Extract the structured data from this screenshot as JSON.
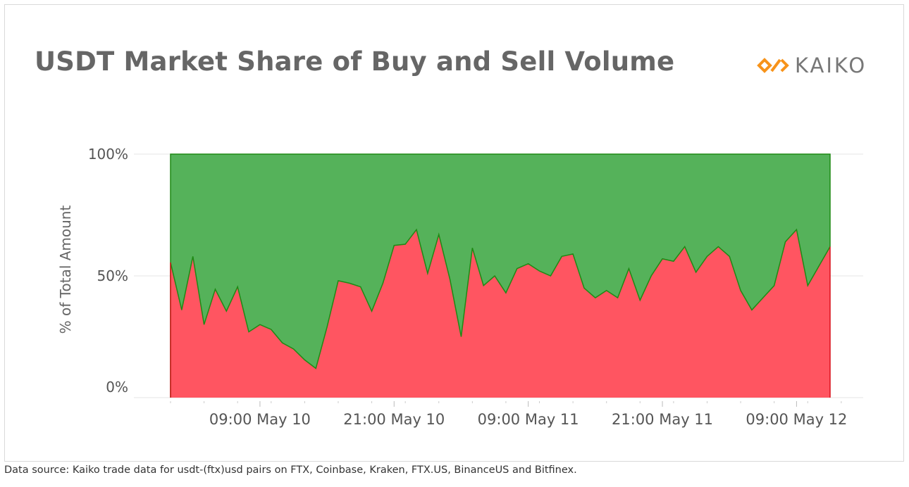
{
  "title": "USDT Market Share of Buy and Sell Volume",
  "logo": {
    "text": "KAIKO",
    "icon": "kaiko-logo-icon",
    "color": "#f7931a"
  },
  "footer": "Data source: Kaiko trade data for usdt-(ftx)usd pairs on FTX, Coinbase, Kraken, FTX.US, BinanceUS and Bitfinex.",
  "chart_data": {
    "type": "area",
    "stacked": true,
    "ylabel": "% of Total Amount",
    "ylim": [
      0,
      100
    ],
    "yticks": [
      "100%",
      "50%",
      "0%"
    ],
    "xtick_labels": [
      "09:00 May 10",
      "21:00 May 10",
      "09:00 May 11",
      "21:00 May 11",
      "09:00 May 12"
    ],
    "grid": true,
    "colors": {
      "red_series": "#ff5561",
      "red_line": "#d8101a",
      "green_series": "#55b25a",
      "green_line": "#1e8a14"
    },
    "x_hours": [
      0,
      1,
      2,
      3,
      4,
      5,
      6,
      7,
      8,
      9,
      10,
      11,
      12,
      13,
      14,
      15,
      16,
      17,
      18,
      19,
      20,
      21,
      22,
      23,
      24,
      25,
      26,
      27,
      28,
      29,
      30,
      31,
      32,
      33,
      34,
      35,
      36,
      37,
      38,
      39,
      40,
      41,
      42,
      43,
      44,
      45,
      46,
      47,
      48,
      49,
      50,
      51,
      52,
      53,
      54,
      55,
      56,
      57,
      58,
      59
    ],
    "red_series_values": [
      55.5,
      36,
      58,
      30,
      44.5,
      35.5,
      45.5,
      27,
      30,
      28,
      22.5,
      20,
      15.5,
      12,
      29,
      48,
      47,
      45.5,
      35.5,
      47,
      62.5,
      63,
      69,
      51,
      67,
      48.5,
      25,
      61.5,
      46,
      50,
      43,
      53,
      55,
      52,
      50,
      58,
      59,
      45,
      41,
      44,
      41,
      53,
      40,
      50,
      57,
      56,
      62,
      51.5,
      58,
      62,
      58,
      44,
      36,
      41,
      46,
      64,
      69,
      46,
      54,
      62
    ],
    "green_series_values": [
      44.5,
      64,
      42,
      70,
      55.5,
      64.5,
      54.5,
      73,
      70,
      72,
      77.5,
      80,
      84.5,
      88,
      71,
      52,
      53,
      54.5,
      64.5,
      53,
      37.5,
      37,
      31,
      49,
      33,
      51.5,
      75,
      38.5,
      54,
      50,
      57,
      47,
      45,
      48,
      50,
      42,
      41,
      55,
      59,
      56,
      59,
      47,
      60,
      50,
      43,
      44,
      38,
      48.5,
      42,
      38,
      42,
      56,
      64,
      59,
      54,
      36,
      31,
      54,
      46,
      38
    ]
  }
}
